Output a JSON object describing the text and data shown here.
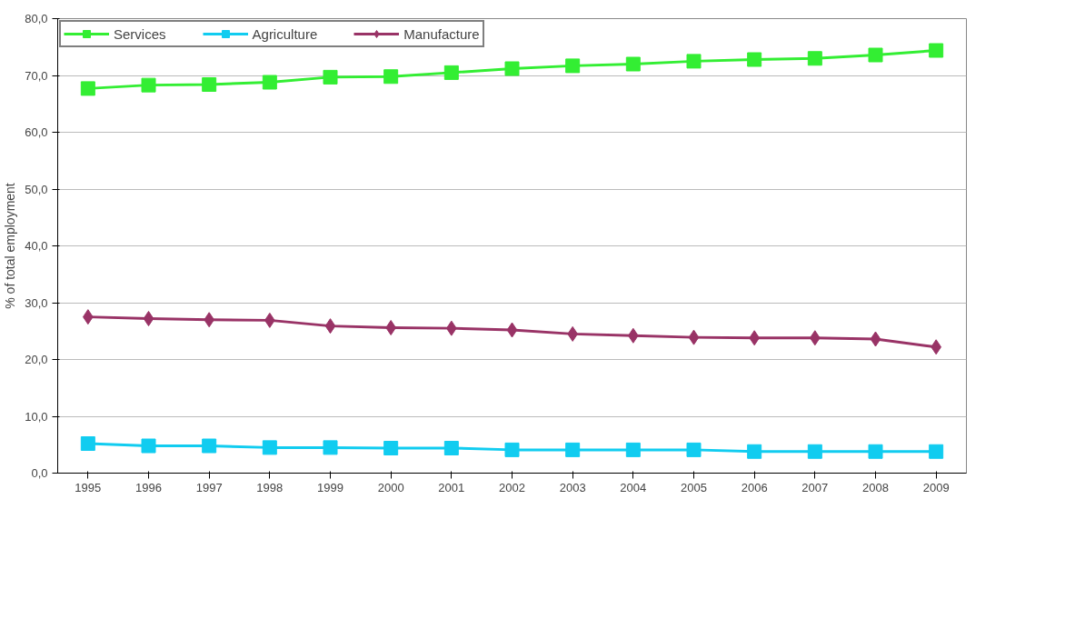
{
  "chart_data": {
    "type": "line",
    "ylabel": "% of total employment",
    "categories": [
      "1995",
      "1996",
      "1997",
      "1998",
      "1999",
      "2000",
      "2001",
      "2002",
      "2003",
      "2004",
      "2005",
      "2006",
      "2007",
      "2008",
      "2009"
    ],
    "series": [
      {
        "name": "Services",
        "color": "#33ee33",
        "marker": "square",
        "values": [
          67.7,
          68.3,
          68.4,
          68.8,
          69.7,
          69.8,
          70.5,
          71.2,
          71.7,
          72.0,
          72.5,
          72.8,
          73.0,
          73.6,
          74.4
        ]
      },
      {
        "name": "Agriculture",
        "color": "#11ccf0",
        "marker": "square",
        "values": [
          5.2,
          4.8,
          4.8,
          4.5,
          4.5,
          4.4,
          4.4,
          4.1,
          4.1,
          4.1,
          4.1,
          3.8,
          3.8,
          3.8,
          3.8
        ]
      },
      {
        "name": "Manufacture",
        "color": "#993366",
        "marker": "diamond",
        "values": [
          27.5,
          27.2,
          27.0,
          26.9,
          25.9,
          25.6,
          25.5,
          25.2,
          24.5,
          24.2,
          23.9,
          23.8,
          23.8,
          23.6,
          22.2
        ]
      }
    ],
    "ylim": [
      0,
      80
    ],
    "yticks": [
      {
        "value": 0,
        "label": "0,0"
      },
      {
        "value": 10,
        "label": "10,0"
      },
      {
        "value": 20,
        "label": "20,0"
      },
      {
        "value": 30,
        "label": "30,0"
      },
      {
        "value": 40,
        "label": "40,0"
      },
      {
        "value": 50,
        "label": "50,0"
      },
      {
        "value": 60,
        "label": "60,0"
      },
      {
        "value": 70,
        "label": "70,0"
      },
      {
        "value": 80,
        "label": "80,0"
      }
    ],
    "grid": "y",
    "legend": "top",
    "line_style": "solid"
  }
}
